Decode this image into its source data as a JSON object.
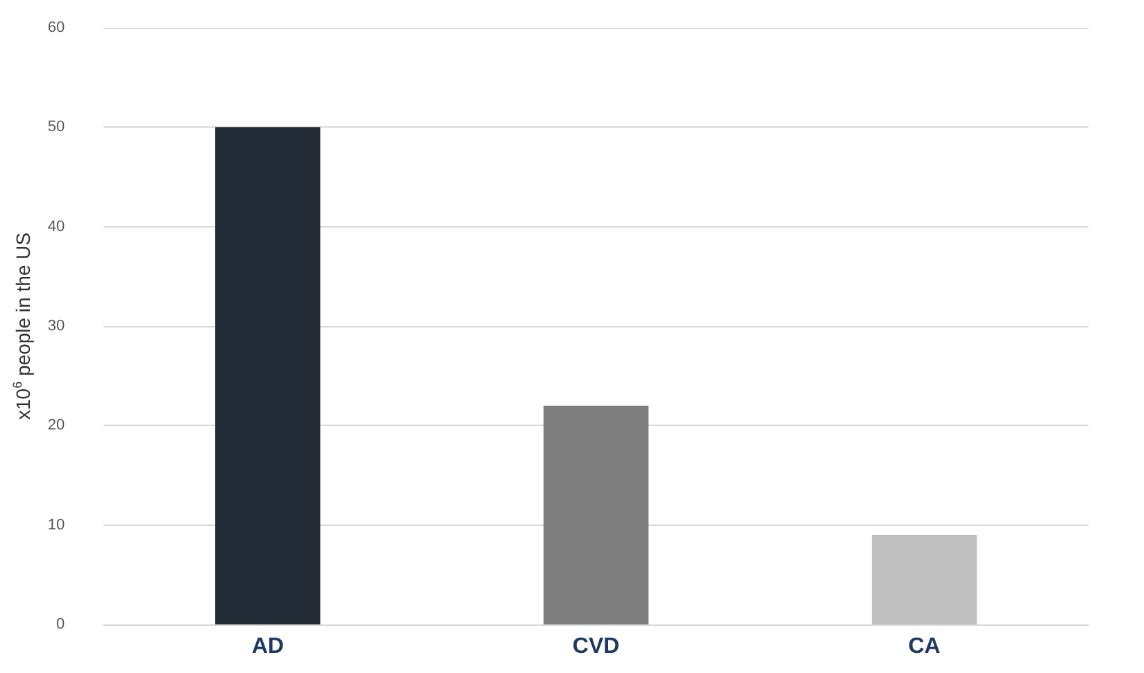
{
  "chart_data": {
    "type": "bar",
    "ylabel": "x10$^{6}$ people in the US",
    "categories": [
      "AD",
      "CVD",
      "CA"
    ],
    "values": [
      50,
      22,
      9
    ],
    "colors": [
      "#222a36",
      "#7f7f7f",
      "#bfbfbf"
    ],
    "ylim": [
      0,
      60
    ],
    "yticks": [
      0,
      10,
      20,
      30,
      40,
      50,
      60
    ],
    "grid": "y"
  }
}
